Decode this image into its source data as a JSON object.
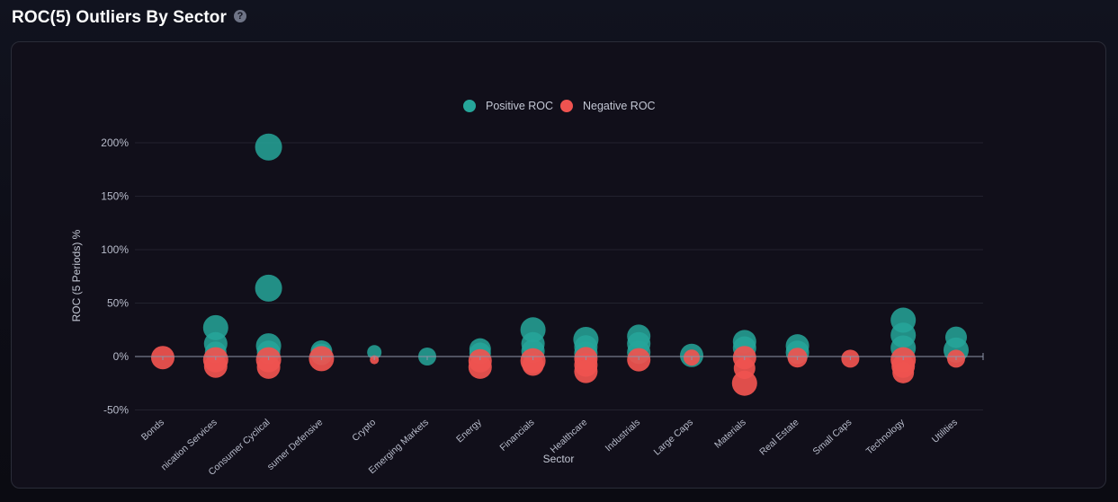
{
  "header": {
    "title": "ROC(5) Outliers By Sector",
    "help_icon": "?"
  },
  "colors": {
    "positive": "#26a69a",
    "negative": "#ef5350"
  },
  "chart_data": {
    "type": "scatter",
    "title": "ROC(5) Outliers By Sector",
    "xlabel": "Sector",
    "ylabel": "ROC (5 Periods) %",
    "ylim": [
      -50,
      200
    ],
    "yticks": [
      -50,
      0,
      50,
      100,
      150,
      200
    ],
    "ytick_labels": [
      "-50%",
      "0%",
      "50%",
      "100%",
      "150%",
      "200%"
    ],
    "legend_position": "top-center",
    "categories": [
      "Bonds",
      "Communication Services",
      "Consumer Cyclical",
      "Consumer Defensive",
      "Crypto",
      "Emerging Markets",
      "Energy",
      "Financials",
      "Healthcare",
      "Industrials",
      "Large Caps",
      "Materials",
      "Real Estate",
      "Small Caps",
      "Technology",
      "Utilities"
    ],
    "category_labels": [
      "Bonds",
      "nication Services",
      "Consumer Cyclical",
      "sumer Defensive",
      "Crypto",
      "Emerging Markets",
      "Energy",
      "Financials",
      "Healthcare",
      "Industrials",
      "Large Caps",
      "Materials",
      "Real Estate",
      "Small Caps",
      "Technology",
      "Utilities"
    ],
    "series": [
      {
        "name": "Positive ROC",
        "points": [
          {
            "cat": 1,
            "y": 27,
            "r": 14
          },
          {
            "cat": 1,
            "y": 12,
            "r": 13
          },
          {
            "cat": 1,
            "y": 4,
            "r": 12
          },
          {
            "cat": 2,
            "y": 196,
            "r": 15
          },
          {
            "cat": 2,
            "y": 64,
            "r": 15
          },
          {
            "cat": 2,
            "y": 10,
            "r": 14
          },
          {
            "cat": 2,
            "y": 4,
            "r": 13
          },
          {
            "cat": 3,
            "y": 5,
            "r": 12
          },
          {
            "cat": 3,
            "y": 2,
            "r": 12
          },
          {
            "cat": 4,
            "y": 4,
            "r": 8
          },
          {
            "cat": 5,
            "y": 0,
            "r": 10
          },
          {
            "cat": 6,
            "y": 7,
            "r": 12
          },
          {
            "cat": 6,
            "y": 3,
            "r": 12
          },
          {
            "cat": 7,
            "y": 25,
            "r": 14
          },
          {
            "cat": 7,
            "y": 12,
            "r": 13
          },
          {
            "cat": 7,
            "y": 5,
            "r": 13
          },
          {
            "cat": 8,
            "y": 16,
            "r": 14
          },
          {
            "cat": 8,
            "y": 9,
            "r": 13
          },
          {
            "cat": 8,
            "y": 3,
            "r": 13
          },
          {
            "cat": 9,
            "y": 19,
            "r": 13
          },
          {
            "cat": 9,
            "y": 12,
            "r": 13
          },
          {
            "cat": 9,
            "y": 4,
            "r": 13
          },
          {
            "cat": 10,
            "y": 1,
            "r": 13
          },
          {
            "cat": 11,
            "y": 14,
            "r": 13
          },
          {
            "cat": 11,
            "y": 8,
            "r": 13
          },
          {
            "cat": 12,
            "y": 10,
            "r": 13
          },
          {
            "cat": 12,
            "y": 4,
            "r": 13
          },
          {
            "cat": 14,
            "y": 34,
            "r": 14
          },
          {
            "cat": 14,
            "y": 20,
            "r": 14
          },
          {
            "cat": 14,
            "y": 8,
            "r": 14
          },
          {
            "cat": 15,
            "y": 18,
            "r": 12
          },
          {
            "cat": 15,
            "y": 6,
            "r": 14
          }
        ]
      },
      {
        "name": "Negative ROC",
        "points": [
          {
            "cat": 0,
            "y": -1,
            "r": 13
          },
          {
            "cat": 1,
            "y": -3,
            "r": 14
          },
          {
            "cat": 1,
            "y": -9,
            "r": 13
          },
          {
            "cat": 2,
            "y": -3,
            "r": 14
          },
          {
            "cat": 2,
            "y": -10,
            "r": 13
          },
          {
            "cat": 3,
            "y": -2,
            "r": 14
          },
          {
            "cat": 4,
            "y": -3,
            "r": 5
          },
          {
            "cat": 6,
            "y": -4,
            "r": 13
          },
          {
            "cat": 6,
            "y": -10,
            "r": 13
          },
          {
            "cat": 7,
            "y": -4,
            "r": 14
          },
          {
            "cat": 7,
            "y": -8,
            "r": 12
          },
          {
            "cat": 8,
            "y": -2,
            "r": 13
          },
          {
            "cat": 8,
            "y": -8,
            "r": 13
          },
          {
            "cat": 8,
            "y": -14,
            "r": 13
          },
          {
            "cat": 9,
            "y": -3,
            "r": 13
          },
          {
            "cat": 10,
            "y": -1,
            "r": 9
          },
          {
            "cat": 11,
            "y": -1,
            "r": 13
          },
          {
            "cat": 11,
            "y": -11,
            "r": 12
          },
          {
            "cat": 11,
            "y": -25,
            "r": 14
          },
          {
            "cat": 12,
            "y": -1,
            "r": 11
          },
          {
            "cat": 13,
            "y": -2,
            "r": 10
          },
          {
            "cat": 14,
            "y": -3,
            "r": 14
          },
          {
            "cat": 14,
            "y": -9,
            "r": 13
          },
          {
            "cat": 14,
            "y": -15,
            "r": 12
          },
          {
            "cat": 15,
            "y": -2,
            "r": 10
          }
        ]
      }
    ]
  }
}
